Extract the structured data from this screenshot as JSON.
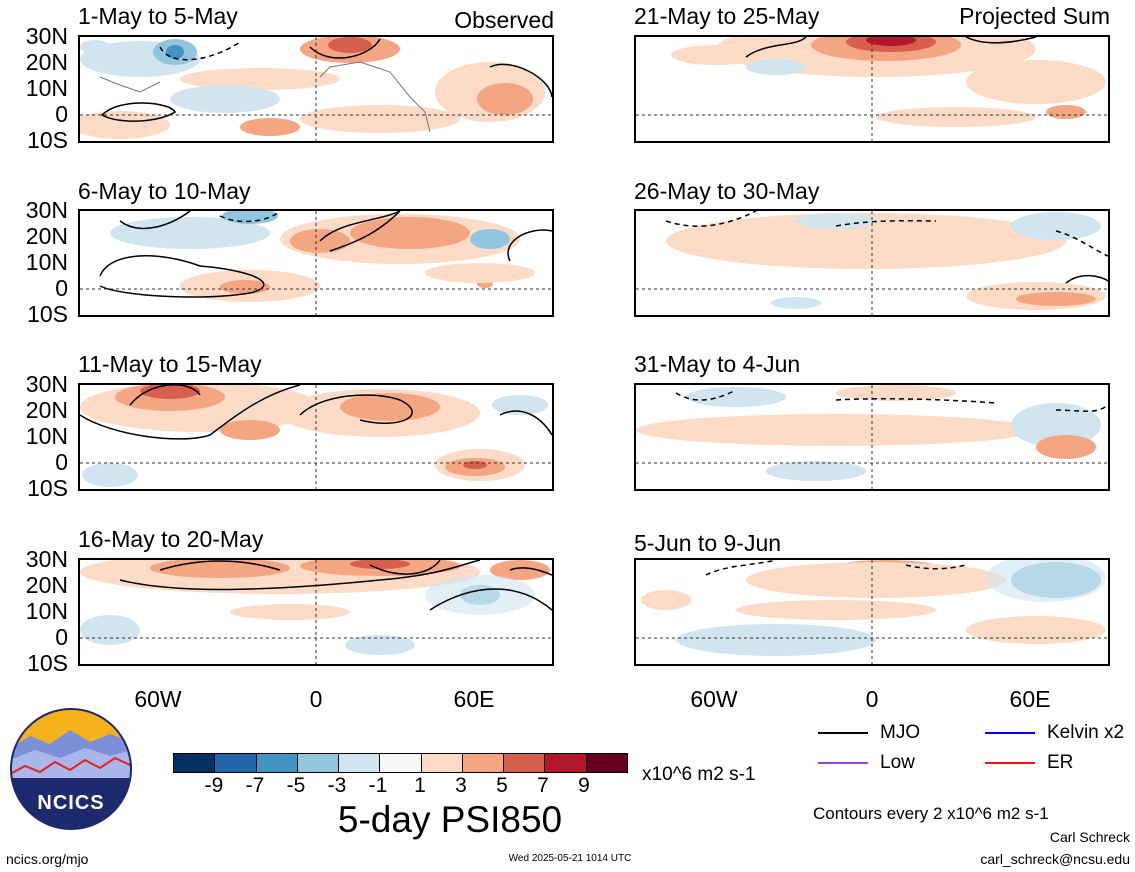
{
  "observed_label": "Observed",
  "projected_label": "Projected Sum",
  "lat_labels": [
    "30N",
    "20N",
    "10N",
    "0",
    "10S"
  ],
  "lon_labels": [
    "60W",
    "0",
    "60E"
  ],
  "panels_left": [
    {
      "title": "1-May to 5-May"
    },
    {
      "title": "6-May to 10-May"
    },
    {
      "title": "11-May to 15-May"
    },
    {
      "title": "16-May to 20-May"
    }
  ],
  "panels_right": [
    {
      "title": "21-May to 25-May"
    },
    {
      "title": "26-May to 30-May"
    },
    {
      "title": "31-May to 4-Jun"
    },
    {
      "title": "5-Jun to 9-Jun"
    }
  ],
  "colorbar": {
    "ticks": [
      "-9",
      "-7",
      "-5",
      "-3",
      "-1",
      "1",
      "3",
      "5",
      "7",
      "9"
    ],
    "colors": [
      "#053061",
      "#2166ac",
      "#4393c3",
      "#92c5de",
      "#d1e5f0",
      "#f7f7f7",
      "#fddbc7",
      "#f4a582",
      "#d6604d",
      "#b2182b",
      "#67001f"
    ],
    "units": "x10^6 m2 s-1",
    "title": "5-day PSI850"
  },
  "legend": [
    {
      "label": "MJO",
      "color": "#000000"
    },
    {
      "label": "Kelvin x2",
      "color": "#0000ee"
    },
    {
      "label": "Low",
      "color": "#a040e0"
    },
    {
      "label": "ER",
      "color": "#ee1111"
    }
  ],
  "contours_note": "Contours every 2 x10^6 m2 s-1",
  "author": "Carl Schreck",
  "email": "carl_schreck@ncsu.edu",
  "site": "ncics.org/mjo",
  "timestamp": "Wed 2025-05-21 1014 UTC",
  "logo_text": "NCICS"
}
